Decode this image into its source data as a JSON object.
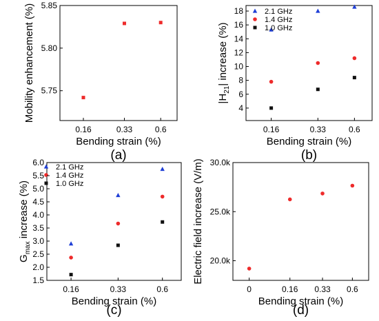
{
  "chart_data": [
    {
      "type": "scatter",
      "panel_label": "(a)",
      "xlabel": "Bending strain (%)",
      "ylabel": "Mobility enhancement (%)",
      "categories": [
        "0.16",
        "0.33",
        "0.6"
      ],
      "ylim": [
        5.715,
        5.85
      ],
      "yticks": [
        "5.75",
        "5.80",
        "5.85"
      ],
      "series": [
        {
          "values": [
            5.742,
            5.829,
            5.83
          ],
          "color": "#ee2b2b",
          "marker": "square"
        }
      ]
    },
    {
      "type": "scatter",
      "panel_label": "(b)",
      "xlabel": "Bending strain (%)",
      "ylabel": {
        "pre": "|H",
        "sub": "21",
        "post": "| increase (%)"
      },
      "categories": [
        "0.16",
        "0.33",
        "0.6"
      ],
      "ylim": [
        2.2,
        18.8
      ],
      "yticks": [
        "4",
        "6",
        "8",
        "10",
        "12",
        "14",
        "16",
        "18"
      ],
      "legend_position": "top-left",
      "series": [
        {
          "name": "2.1 GHz",
          "values": [
            15.3,
            18.0,
            18.6
          ],
          "color": "#1f3fd6",
          "marker": "triangle"
        },
        {
          "name": "1.4 GHz",
          "values": [
            7.8,
            10.5,
            11.2
          ],
          "color": "#ee2b2b",
          "marker": "circle"
        },
        {
          "name": "1.0 GHz",
          "values": [
            4.0,
            6.7,
            8.4
          ],
          "color": "#111111",
          "marker": "square"
        }
      ]
    },
    {
      "type": "scatter",
      "panel_label": "(c)",
      "xlabel": "Bending strain (%)",
      "ylabel": {
        "pre": "G",
        "sub": "max",
        "post": " increase (%)"
      },
      "categories": [
        "0.16",
        "0.33",
        "0.6"
      ],
      "ylim": [
        1.5,
        6.0
      ],
      "yticks": [
        "1.5",
        "2.0",
        "2.5",
        "3.0",
        "3.5",
        "4.0",
        "4.5",
        "5.0",
        "5.5",
        "6.0"
      ],
      "legend_position": "top-left",
      "series": [
        {
          "name": "2.1 GHz",
          "values": [
            2.9,
            4.75,
            5.75
          ],
          "color": "#1f3fd6",
          "marker": "triangle"
        },
        {
          "name": "1.4 GHz",
          "values": [
            2.37,
            3.67,
            4.7
          ],
          "color": "#ee2b2b",
          "marker": "circle"
        },
        {
          "name": "1.0 GHz",
          "values": [
            1.72,
            2.84,
            3.73
          ],
          "color": "#111111",
          "marker": "square"
        }
      ]
    },
    {
      "type": "scatter",
      "panel_label": "(d)",
      "xlabel": "Bending strain (%)",
      "ylabel": "Electric field increase (V/m)",
      "categories": [
        "0",
        "0.16",
        "0.33",
        "0.6"
      ],
      "ylim": [
        18000,
        30000
      ],
      "yticks": [
        "20.0k",
        "25.0k",
        "30.0k"
      ],
      "series": [
        {
          "values": [
            19200,
            26250,
            26850,
            27650
          ],
          "color": "#ee2b2b",
          "marker": "circle"
        }
      ]
    }
  ]
}
